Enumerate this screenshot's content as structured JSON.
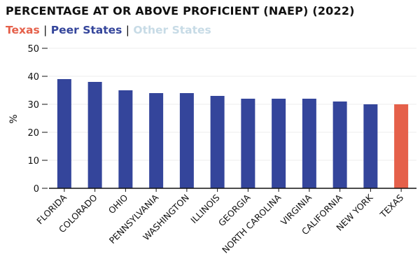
{
  "colors": {
    "texas": "#e5604a",
    "peer": "#34459b",
    "other": "#c7dbe6",
    "separator": "#111111"
  },
  "legend": {
    "texas": "Texas",
    "peer": "Peer States",
    "other": "Other States",
    "separator": "|"
  },
  "chart_data": {
    "type": "bar",
    "title": "PERCENTAGE AT OR ABOVE PROFICIENT (NAEP) (2022)",
    "xlabel": "",
    "ylabel": "%",
    "ylim": [
      0,
      50
    ],
    "yticks": [
      0,
      10,
      20,
      30,
      40,
      50
    ],
    "grid": true,
    "categories": [
      "FLORIDA",
      "COLORADO",
      "OHIO",
      "PENNSYLVANIA",
      "WASHINGTON",
      "ILLINOIS",
      "GEORGIA",
      "NORTH CAROLINA",
      "VIRGINIA",
      "CALIFORNIA",
      "NEW YORK",
      "TEXAS"
    ],
    "values": [
      39,
      38,
      35,
      34,
      34,
      33,
      32,
      32,
      32,
      31,
      30,
      30
    ],
    "groups": [
      "peer",
      "peer",
      "peer",
      "peer",
      "peer",
      "peer",
      "peer",
      "peer",
      "peer",
      "peer",
      "peer",
      "texas"
    ]
  }
}
